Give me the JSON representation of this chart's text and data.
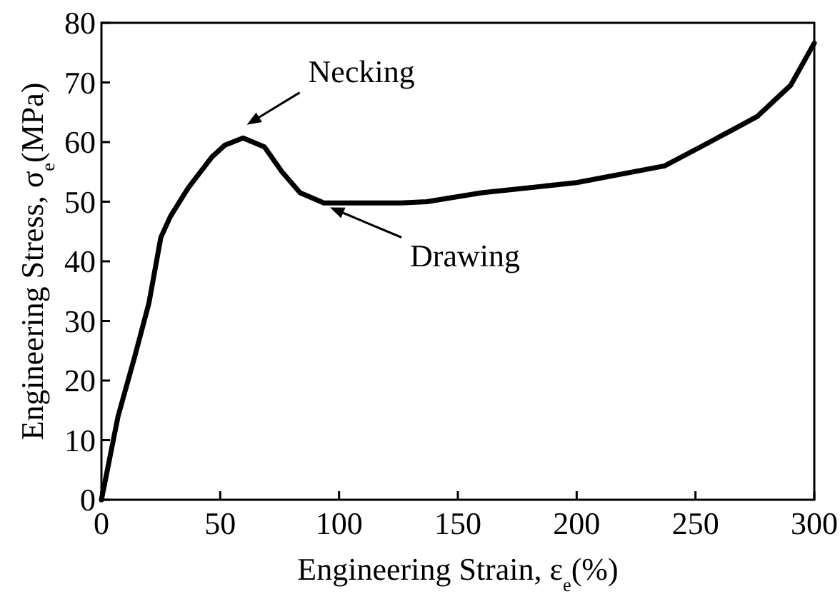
{
  "chart_data": {
    "type": "line",
    "xlabel": "Engineering Strain, ε$_{e}$(%)",
    "ylabel": "Engineering Stress, σ$_{e}$(MPa)",
    "xlim": [
      0,
      300
    ],
    "ylim": [
      0,
      80
    ],
    "xticks": [
      0,
      50,
      100,
      150,
      200,
      250,
      300
    ],
    "yticks": [
      0,
      10,
      20,
      30,
      40,
      50,
      60,
      70,
      80
    ],
    "marker": "none",
    "line_style": "solid",
    "series": [
      {
        "color": "#000000",
        "x": [
          0,
          7,
          14,
          20,
          25,
          29,
          36.5,
          46.5,
          52,
          59.6,
          68.6,
          76,
          83.6,
          93.6,
          110,
          126,
          137,
          160,
          200,
          237,
          256,
          276,
          290,
          300
        ],
        "values": [
          0,
          14,
          24,
          33,
          44,
          47.5,
          52.3,
          57.5,
          59.5,
          60.7,
          59.2,
          55,
          51.5,
          49.8,
          49.8,
          49.8,
          50,
          51.5,
          53.2,
          56,
          60,
          64.3,
          69.5,
          76.6
        ]
      }
    ],
    "annotations": [
      {
        "text": "Necking",
        "x": 60,
        "y": 61
      },
      {
        "text": "Drawing",
        "x": 95,
        "y": 50
      }
    ]
  }
}
